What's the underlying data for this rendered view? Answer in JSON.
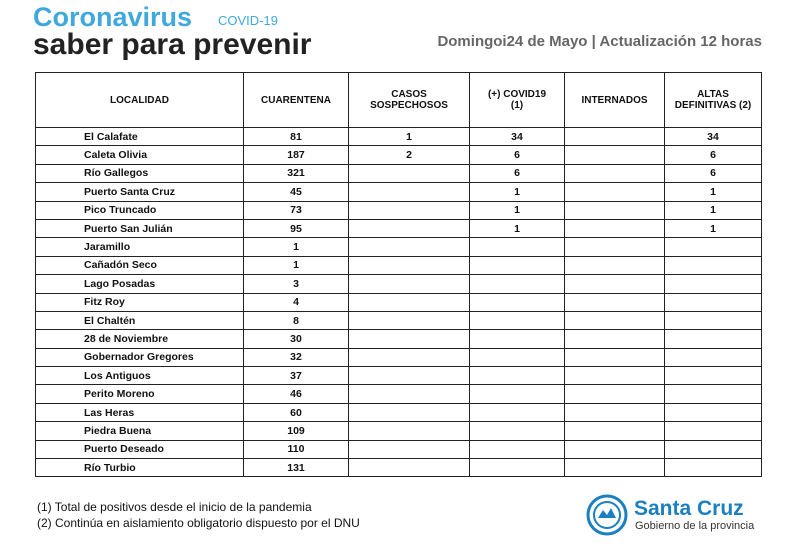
{
  "header": {
    "title": "Coronavirus",
    "tag": "COVID-19",
    "subtitle": "saber para prevenir",
    "date": "Domingoi24 de Mayo | Actualización 12 horas"
  },
  "table": {
    "columns": [
      "LOCALIDAD",
      "CUARENTENA",
      "CASOS\nSOSPECHOSOS",
      "(+) COVID19\n(1)",
      "INTERNADOS",
      "ALTAS\nDEFINITIVAS (2)"
    ],
    "rows": [
      [
        "El Calafate",
        81,
        1,
        34,
        null,
        34
      ],
      [
        "Caleta Olivia",
        187,
        2,
        6,
        null,
        6
      ],
      [
        "Río Gallegos",
        321,
        null,
        6,
        null,
        6
      ],
      [
        "Puerto Santa Cruz",
        45,
        null,
        1,
        null,
        1
      ],
      [
        "Pico Truncado",
        73,
        null,
        1,
        null,
        1
      ],
      [
        "Puerto San Julián",
        95,
        null,
        1,
        null,
        1
      ],
      [
        "Jaramillo",
        1,
        null,
        null,
        null,
        null
      ],
      [
        "Cañadón Seco",
        1,
        null,
        null,
        null,
        null
      ],
      [
        "Lago Posadas",
        3,
        null,
        null,
        null,
        null
      ],
      [
        "Fitz Roy",
        4,
        null,
        null,
        null,
        null
      ],
      [
        "El Chaltén",
        8,
        null,
        null,
        null,
        null
      ],
      [
        "28 de Noviembre",
        30,
        null,
        null,
        null,
        null
      ],
      [
        "Gobernador Gregores",
        32,
        null,
        null,
        null,
        null
      ],
      [
        "Los Antiguos",
        37,
        null,
        null,
        null,
        null
      ],
      [
        "Perito Moreno",
        46,
        null,
        null,
        null,
        null
      ],
      [
        "Las Heras",
        60,
        null,
        null,
        null,
        null
      ],
      [
        "Piedra Buena",
        109,
        null,
        null,
        null,
        null
      ],
      [
        "Puerto Deseado",
        110,
        null,
        null,
        null,
        null
      ],
      [
        "Río Turbio",
        131,
        null,
        null,
        null,
        null
      ]
    ]
  },
  "notes": [
    "(1) Total de positivos desde el inicio de la pandemia",
    "(2) Continúa en aislamiento obligatorio dispuesto por el DNU"
  ],
  "logo": {
    "name": "Santa Cruz",
    "tagline": "Gobierno de la provincia"
  }
}
